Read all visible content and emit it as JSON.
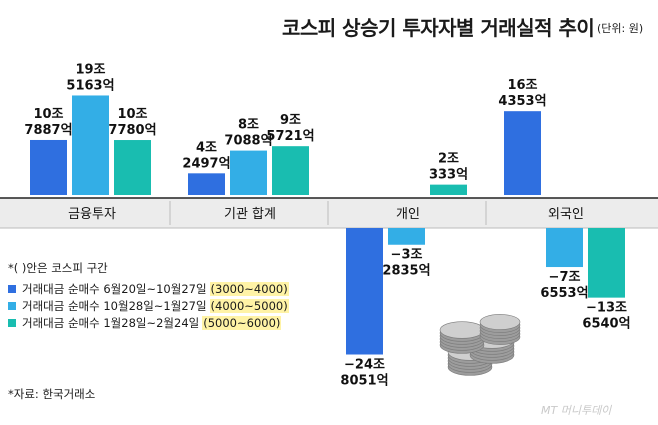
{
  "header": {
    "title": "코스피 상승기 투자자별 거래실적 추이",
    "unit": "(단위: 원)"
  },
  "legend": {
    "note": "*( )안은 코스피 구간",
    "items": [
      {
        "label": "거래대금 순매수 6월20일~10월27일",
        "range": "(3000~4000)",
        "color": "#2f6fe0"
      },
      {
        "label": "거래대금 순매수 10월28일~1월27일",
        "range": "(4000~5000)",
        "color": "#33aee6"
      },
      {
        "label": "거래대금 순매수 1월28일~2월24일",
        "range": "(5000~6000)",
        "color": "#19bdb0"
      }
    ]
  },
  "source": "*자료: 한국거래소",
  "watermark": "MT 머니투데이",
  "chart_data": {
    "type": "bar",
    "unit": "원",
    "categories": [
      "금융투자",
      "기관 합계",
      "개인",
      "외국인"
    ],
    "series": [
      {
        "name": "거래대금 순매수 6월20일~10월27일 (3000~4000)",
        "color": "#2f6fe0",
        "values": [
          10.7887,
          4.2497,
          -24.8051,
          16.4353
        ],
        "labels": [
          [
            "10조",
            "7887억"
          ],
          [
            "4조",
            "2497억"
          ],
          [
            "−24조",
            "8051억"
          ],
          [
            "16조",
            "4353억"
          ]
        ]
      },
      {
        "name": "거래대금 순매수 10월28일~1월27일 (4000~5000)",
        "color": "#33aee6",
        "values": [
          19.5163,
          8.7088,
          -3.2835,
          -7.6553
        ],
        "labels": [
          [
            "19조",
            "5163억"
          ],
          [
            "8조",
            "7088억"
          ],
          [
            "−3조",
            "2835억"
          ],
          [
            "−7조",
            "6553억"
          ]
        ]
      },
      {
        "name": "거래대금 순매수 1월28일~2월24일 (5000~6000)",
        "color": "#19bdb0",
        "values": [
          10.778,
          9.5721,
          2.0333,
          -13.654
        ],
        "labels": [
          [
            "10조",
            "7780억"
          ],
          [
            "9조",
            "5721억"
          ],
          [
            "2조",
            "333억"
          ],
          [
            "−13조",
            "6540억"
          ]
        ]
      }
    ],
    "value_unit": "조원"
  }
}
